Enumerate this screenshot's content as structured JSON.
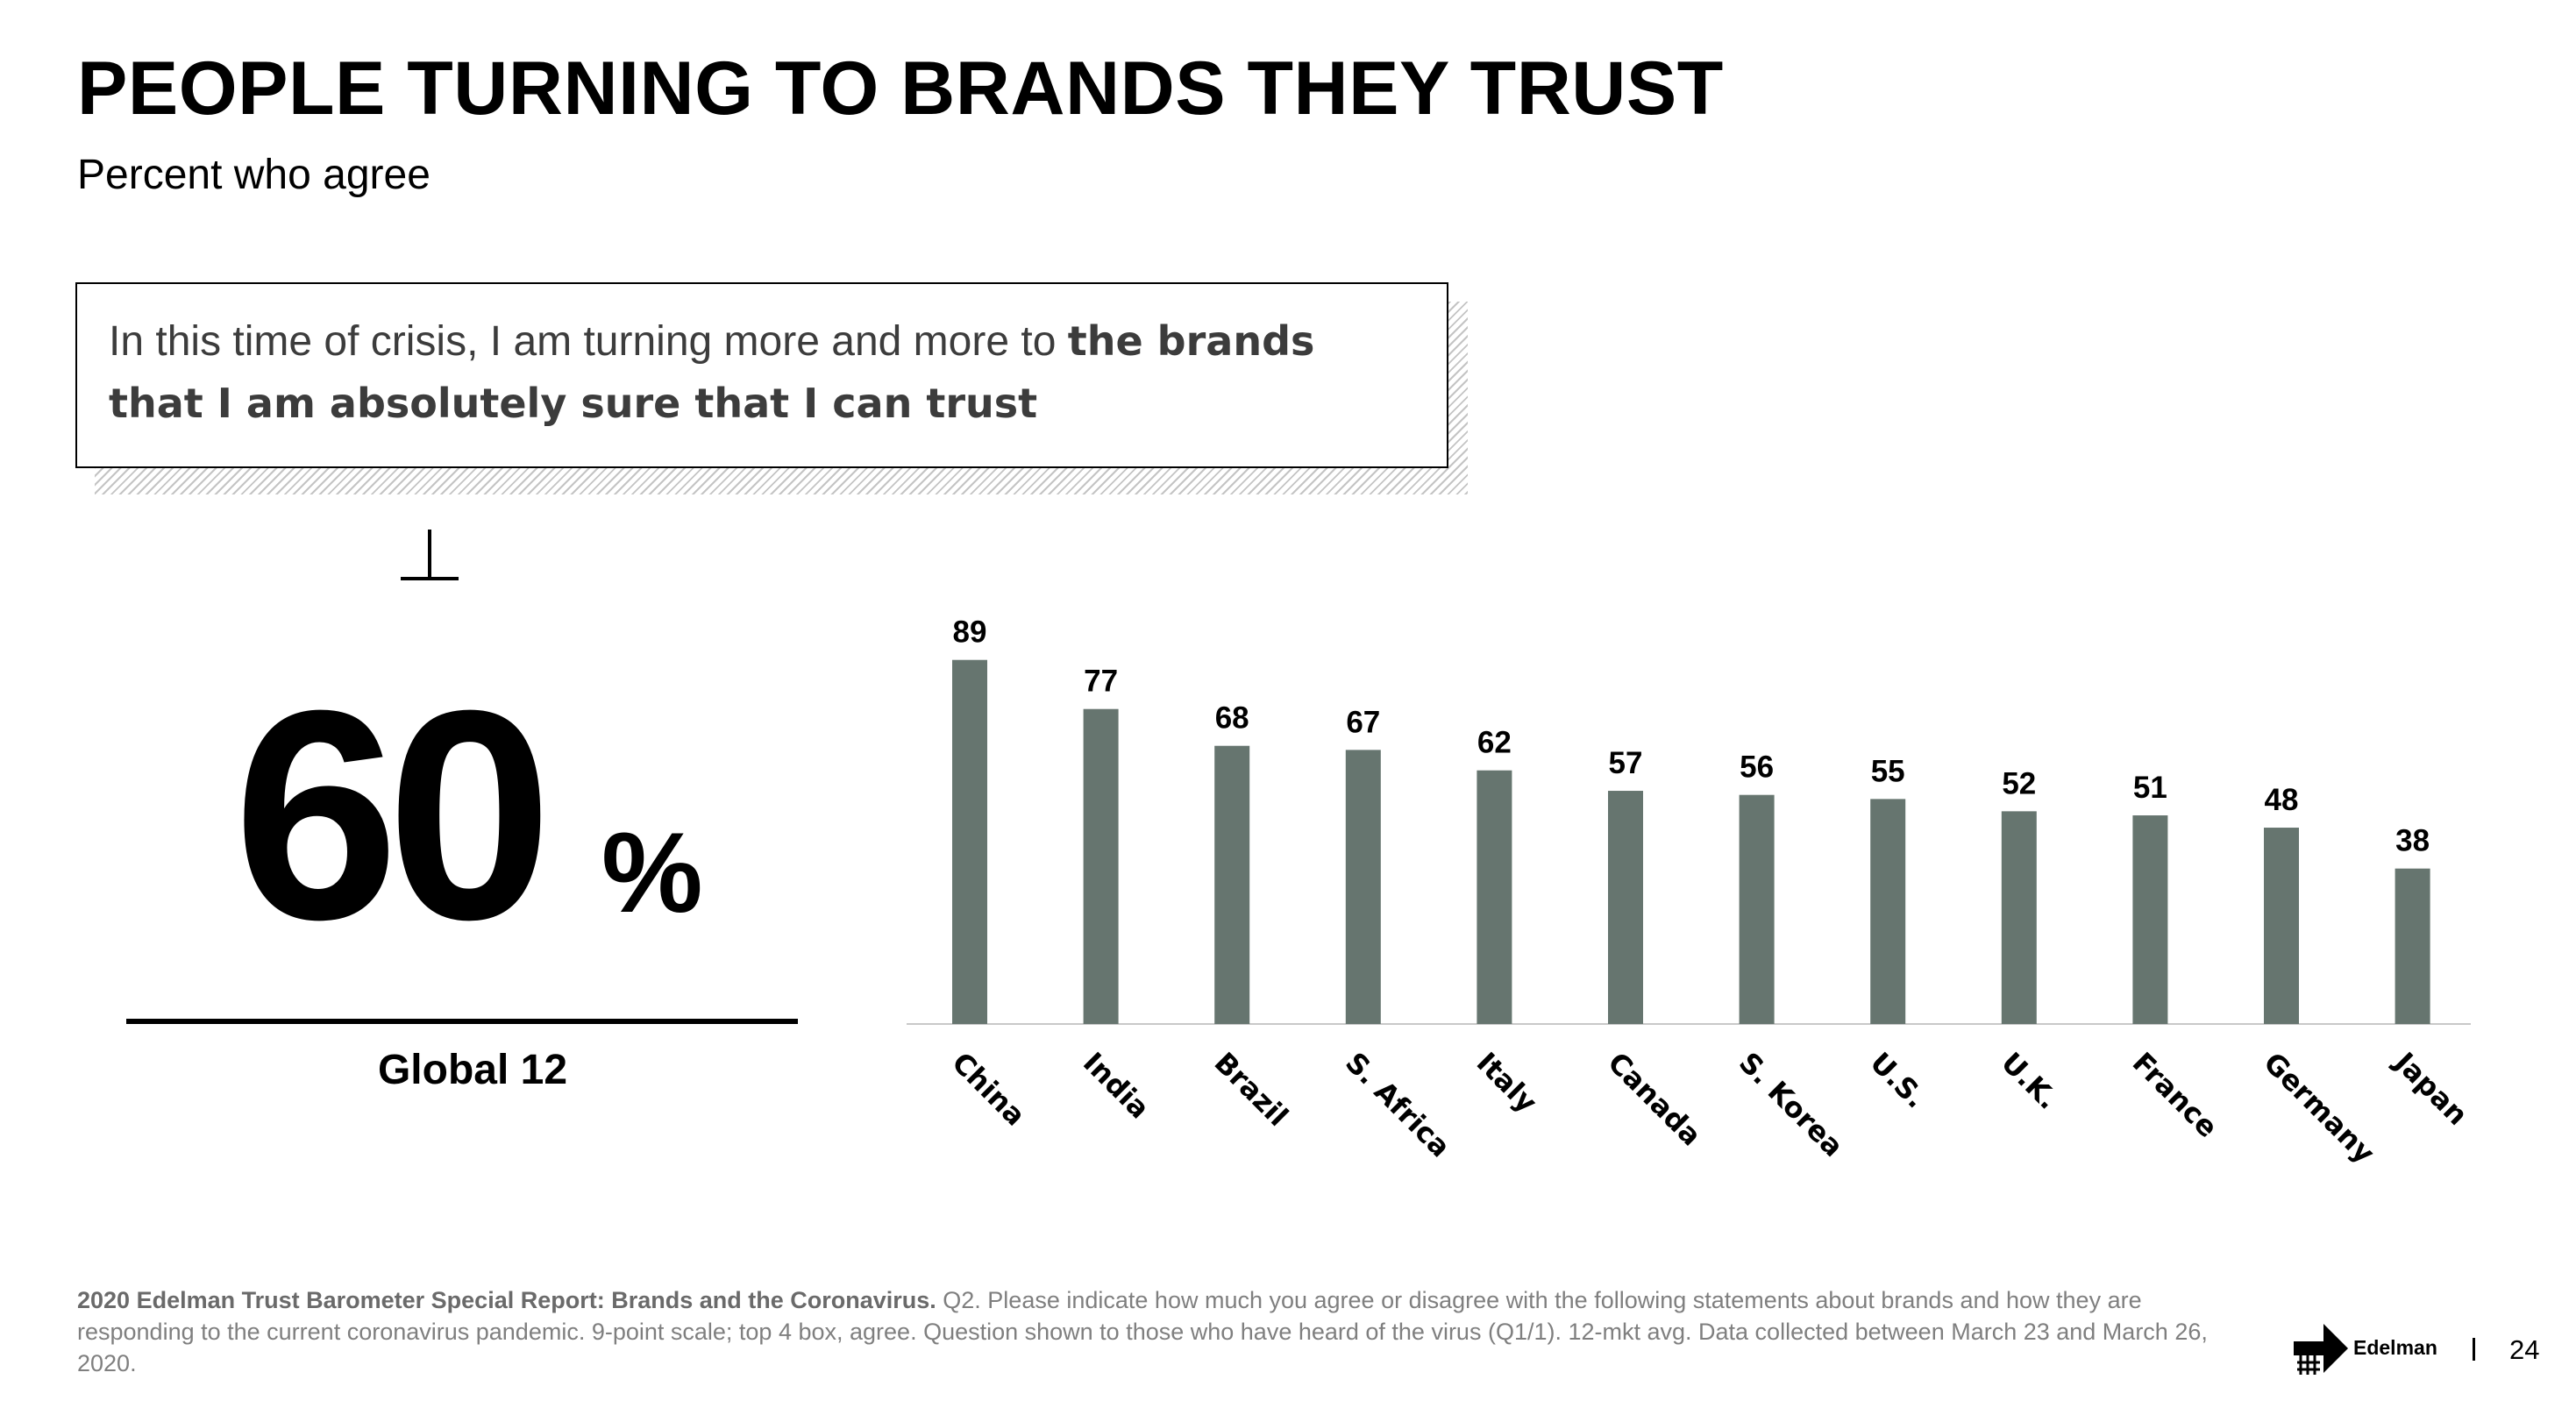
{
  "header": {
    "title": "PEOPLE TURNING TO BRANDS THEY TRUST",
    "subtitle": "Percent who agree"
  },
  "quote": {
    "text_plain": "In this time of crisis, I am turning more and more to ",
    "text_bold": "the brands that I am absolutely sure that I can trust"
  },
  "global": {
    "icon": "perpendicular-icon",
    "value": "60",
    "unit": "%",
    "label": "Global 12"
  },
  "chart_data": {
    "type": "bar",
    "categories": [
      "China",
      "India",
      "Brazil",
      "S. Africa",
      "Italy",
      "Canada",
      "S. Korea",
      "U.S.",
      "U.K.",
      "France",
      "Germany",
      "Japan"
    ],
    "values": [
      89,
      77,
      68,
      67,
      62,
      57,
      56,
      55,
      52,
      51,
      48,
      38
    ],
    "title": "",
    "xlabel": "",
    "ylabel": "",
    "ylim": [
      0,
      100
    ],
    "data_labels": true,
    "grid": false,
    "legend": "none",
    "bar_color": "#66756f",
    "baseline_color": "#c8c8c8"
  },
  "footnote": {
    "bold": "2020 Edelman Trust Barometer Special Report: Brands and the Coronavirus.",
    "text": " Q2. Please indicate how much you agree or disagree with the following statements about brands and how they are responding to the current coronavirus pandemic. 9-point scale; top 4 box, agree. Question shown to those who have heard of the virus (Q1/1). 12-mkt avg. Data collected between March 23 and March 26, 2020."
  },
  "brand": {
    "icon": "edelman-logo-icon",
    "name": "Edelman"
  },
  "page": {
    "number": "24"
  }
}
